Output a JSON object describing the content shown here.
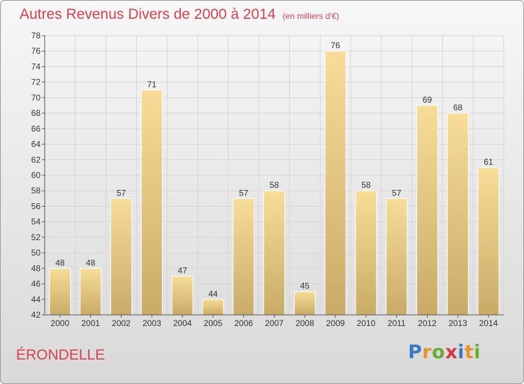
{
  "title": "Autres Revenus Divers de 2000 à 2014",
  "unit": "(en milliers d'€)",
  "location": "ÉRONDELLE",
  "logo": {
    "text": "Proxiti",
    "letters": [
      {
        "ch": "P",
        "color": "#3a78c3"
      },
      {
        "ch": "r",
        "color": "#e8912d"
      },
      {
        "ch": "o",
        "color": "#6aac32"
      },
      {
        "ch": "x",
        "color": "#d6363e"
      },
      {
        "ch": "i",
        "color": "#3a78c3"
      },
      {
        "ch": "t",
        "color": "#e8912d"
      },
      {
        "ch": "i",
        "color": "#6aac32"
      }
    ]
  },
  "colors": {
    "title": "#d4434f",
    "bar_light": "#f7dd98",
    "bar_dark": "#c9ab67",
    "grid": "#d6d6d6",
    "axis": "#555555",
    "text": "#333333"
  },
  "chart_data": {
    "type": "bar",
    "title": "Autres Revenus Divers de 2000 à 2014",
    "subtitle": "(en milliers d'€)",
    "xlabel": "",
    "ylabel": "",
    "categories": [
      "2000",
      "2001",
      "2002",
      "2003",
      "2004",
      "2005",
      "2006",
      "2007",
      "2008",
      "2009",
      "2010",
      "2011",
      "2012",
      "2013",
      "2014"
    ],
    "values": [
      48,
      48,
      57,
      71,
      47,
      44,
      57,
      58,
      45,
      76,
      58,
      57,
      69,
      68,
      61
    ],
    "ylim": [
      42,
      78
    ],
    "ytick_step": 2,
    "grid": true,
    "data_labels": true,
    "legend": "none"
  }
}
